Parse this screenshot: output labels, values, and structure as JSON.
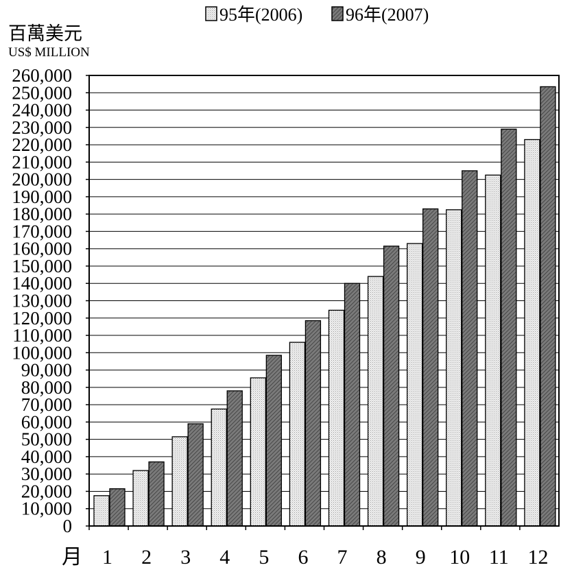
{
  "chart_data": {
    "type": "bar",
    "title": "",
    "ylabel_zh": "百萬美元",
    "ylabel_en": "US$ MILLION",
    "xlabel": "月",
    "ylim": [
      0,
      260000
    ],
    "ytick_step": 10000,
    "ytick_labels": [
      "0",
      "10,000",
      "20,000",
      "30,000",
      "40,000",
      "50,000",
      "60,000",
      "70,000",
      "80,000",
      "90,000",
      "100,000",
      "110,000",
      "120,000",
      "130,000",
      "140,000",
      "150,000",
      "160,000",
      "170,000",
      "180,000",
      "190,000",
      "200,000",
      "210,000",
      "220,000",
      "230,000",
      "240,000",
      "250,000",
      "260,000"
    ],
    "categories": [
      "1",
      "2",
      "3",
      "4",
      "5",
      "6",
      "7",
      "8",
      "9",
      "10",
      "11",
      "12"
    ],
    "grid": true,
    "legend_position": "top",
    "series": [
      {
        "name": "95年(2006)",
        "pattern": "dotted-light",
        "color": "#e6e6e6",
        "values": [
          17500,
          32000,
          51500,
          67500,
          85500,
          106000,
          124500,
          144000,
          163000,
          182500,
          202500,
          223000
        ]
      },
      {
        "name": "96年(2007)",
        "pattern": "hatched-dark",
        "color": "#666666",
        "values": [
          21500,
          37000,
          59000,
          78000,
          98500,
          118500,
          140000,
          161500,
          183000,
          205000,
          229000,
          253500
        ]
      }
    ]
  }
}
